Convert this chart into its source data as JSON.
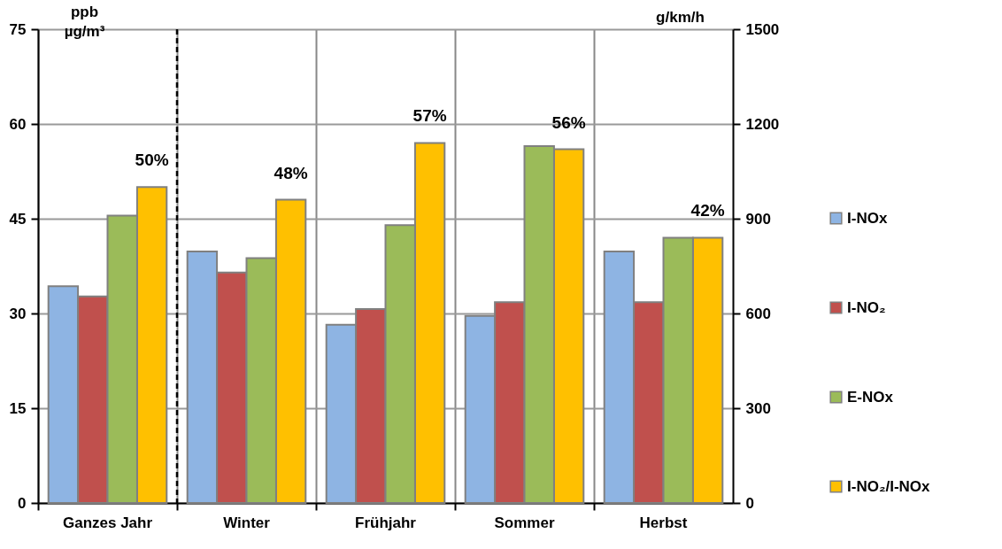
{
  "chart_data": {
    "type": "bar",
    "ylabel": "ppb\nµg/m³",
    "y2label": "g/km/h",
    "categories": [
      "Ganzes Jahr",
      "Winter",
      "Frühjahr",
      "Sommer",
      "Herbst"
    ],
    "series": [
      {
        "name": "I-NOx",
        "color": "#8eb4e3",
        "values": [
          34.3,
          39.8,
          28.2,
          29.6,
          39.8
        ]
      },
      {
        "name": "I-NO₂",
        "color": "#c0504d",
        "values": [
          32.7,
          36.5,
          30.7,
          31.8,
          31.8
        ]
      },
      {
        "name": "E-NOx",
        "color": "#9bbb59",
        "axis": "y2",
        "values": [
          910,
          775,
          880,
          1130,
          840
        ]
      },
      {
        "name": "I-NO₂/I-NOx",
        "color": "#ffc000",
        "values": [
          50,
          48,
          57,
          56,
          42
        ],
        "value_labels": [
          "50%",
          "48%",
          "57%",
          "56%",
          "42%"
        ]
      }
    ],
    "ylim": [
      0,
      75
    ],
    "yticks": [
      0,
      15,
      30,
      45,
      60,
      75
    ],
    "y2lim": [
      0,
      1500
    ],
    "y2ticks": [
      0,
      300,
      600,
      900,
      1200,
      1500
    ],
    "ref_lines": [
      {
        "axis": "x",
        "value": "Winter",
        "color": "#000000",
        "line_style": "dashed"
      }
    ],
    "grid": true,
    "legend": "right"
  }
}
